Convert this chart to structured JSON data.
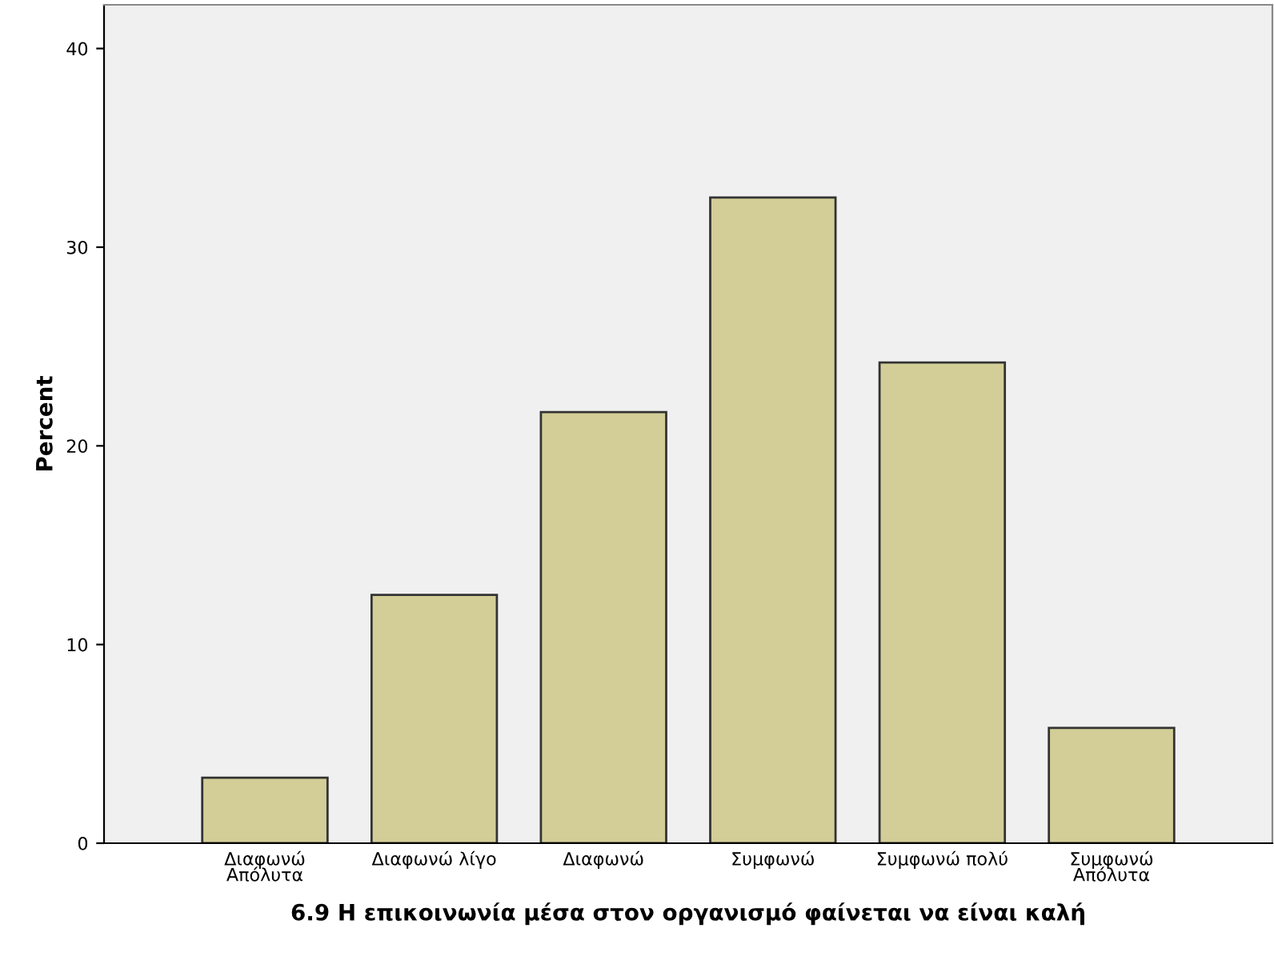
{
  "chart_data": {
    "type": "bar",
    "xlabel": "6.9 Η επικοινωνία μέσα στον οργανισμό φαίνεται να είναι καλή",
    "ylabel": "Percent",
    "categories": [
      "Διαφωνώ\nΑπόλυτα",
      "Διαφωνώ λίγο",
      "Διαφωνώ",
      "Συμφωνώ",
      "Συμφωνώ πολύ",
      "Συμφωνώ\nΑπόλυτα"
    ],
    "values": [
      3.3,
      12.5,
      21.7,
      32.5,
      24.2,
      5.8
    ],
    "color": "#d3ce97",
    "ylim": [
      0,
      42.2
    ],
    "yticks": [
      0,
      10,
      20,
      30,
      40
    ],
    "grid": false
  }
}
